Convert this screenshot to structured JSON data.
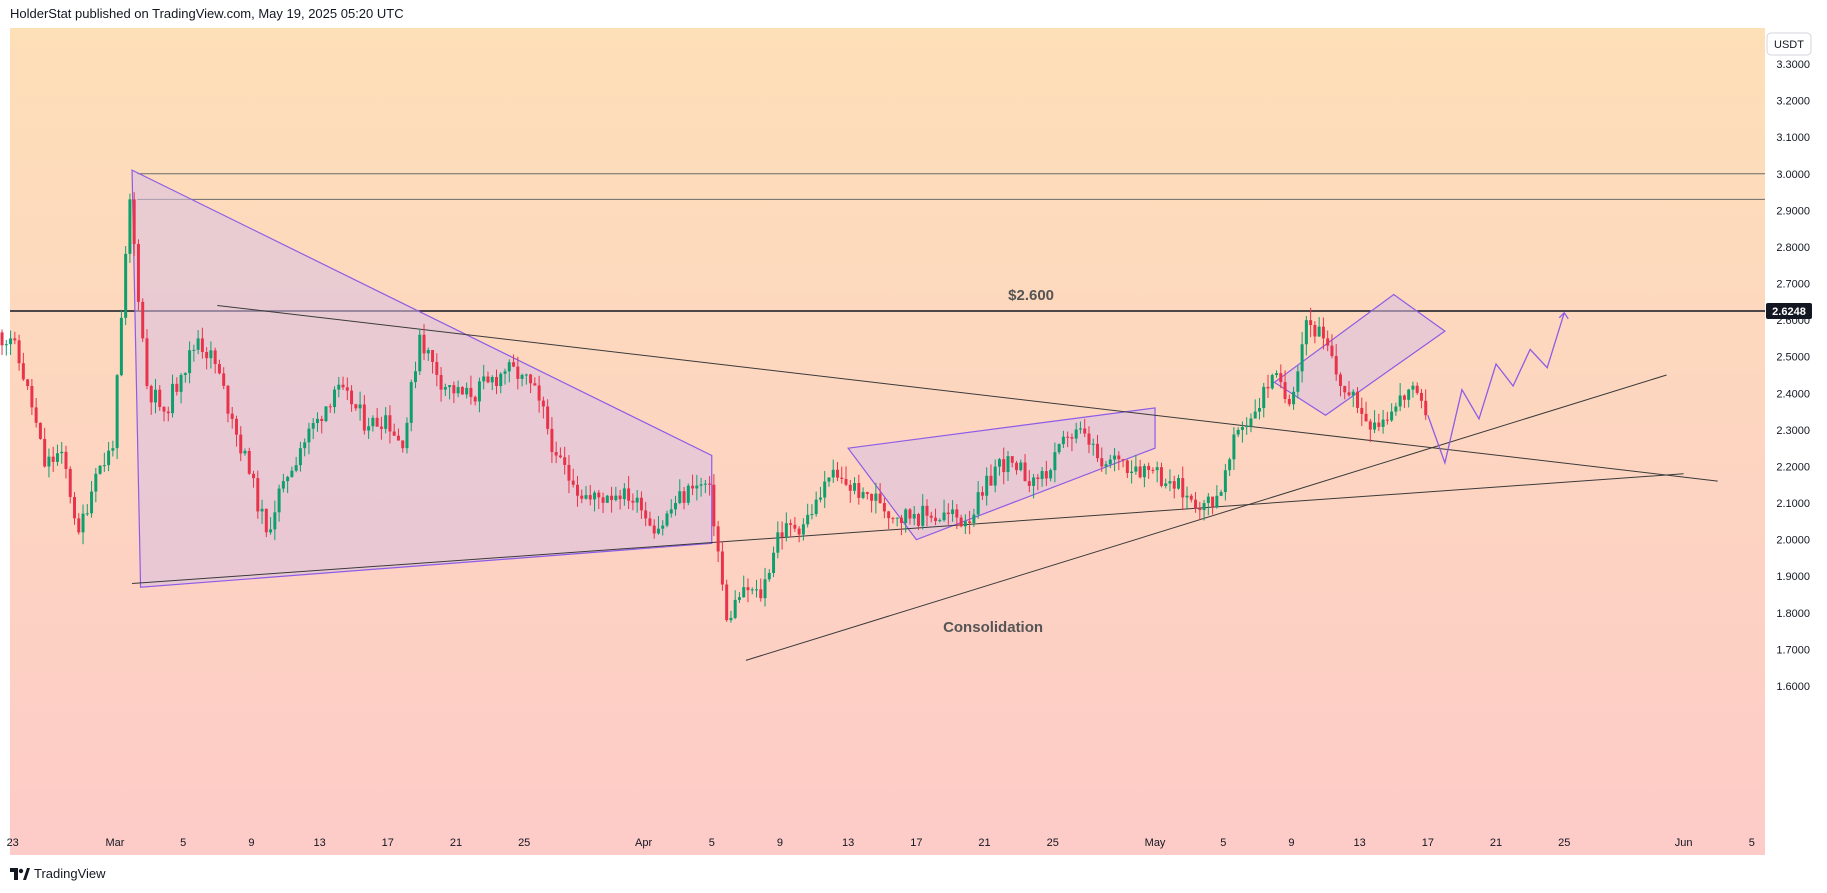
{
  "header": {
    "published": "HolderStat published on TradingView.com, May 19, 2025 05:20 UTC"
  },
  "footer": {
    "brand": "TradingView",
    "brand_icon": "tradingview-logo-icon"
  },
  "colors": {
    "bg_top": "#fddfb8",
    "bg_bottom": "#fdcbc8",
    "candle_up": "#0e9f6e",
    "candle_down": "#e8334a",
    "pattern_line": "#8e5ce6",
    "pattern_fill": "#d8bfe4",
    "trend_line": "#3a3a3a",
    "price_badge": "#131722"
  },
  "chart_data": {
    "type": "candlestick",
    "currency": "USDT",
    "ylim": [
      1.55,
      3.35
    ],
    "y_ticks": [
      "3.3000",
      "3.2000",
      "3.1000",
      "3.0000",
      "2.9000",
      "2.8000",
      "2.7000",
      "2.6000",
      "2.5000",
      "2.4000",
      "2.3000",
      "2.2000",
      "2.1000",
      "2.0000",
      "1.9000",
      "1.8000",
      "1.7000",
      "1.6000"
    ],
    "x_ticks": [
      "23",
      "Mar",
      "5",
      "9",
      "13",
      "17",
      "21",
      "25",
      "Apr",
      "5",
      "9",
      "13",
      "17",
      "21",
      "25",
      "May",
      "5",
      "9",
      "13",
      "17",
      "21",
      "25",
      "Jun",
      "5"
    ],
    "x_tick_days": [
      -6,
      0,
      4,
      8,
      12,
      16,
      20,
      24,
      31,
      35,
      39,
      43,
      47,
      51,
      55,
      61,
      65,
      69,
      73,
      77,
      81,
      85,
      92,
      96
    ],
    "last_price": "2.6248",
    "price_level_label": "$2.600",
    "annotation": "Consolidation",
    "daily_closes": [
      {
        "day": -7,
        "close": 2.56
      },
      {
        "day": -6,
        "close": 2.55
      },
      {
        "day": -5,
        "close": 2.42
      },
      {
        "day": -4,
        "close": 2.2
      },
      {
        "day": -3,
        "close": 2.24
      },
      {
        "day": -2,
        "close": 2.02
      },
      {
        "day": -1,
        "close": 2.18
      },
      {
        "day": 0,
        "close": 2.25
      },
      {
        "day": 1,
        "close": 2.93
      },
      {
        "day": 2,
        "close": 2.42
      },
      {
        "day": 3,
        "close": 2.35
      },
      {
        "day": 4,
        "close": 2.45
      },
      {
        "day": 5,
        "close": 2.55
      },
      {
        "day": 6,
        "close": 2.48
      },
      {
        "day": 7,
        "close": 2.33
      },
      {
        "day": 8,
        "close": 2.18
      },
      {
        "day": 9,
        "close": 2.02
      },
      {
        "day": 10,
        "close": 2.16
      },
      {
        "day": 11,
        "close": 2.25
      },
      {
        "day": 12,
        "close": 2.33
      },
      {
        "day": 13,
        "close": 2.41
      },
      {
        "day": 14,
        "close": 2.37
      },
      {
        "day": 15,
        "close": 2.31
      },
      {
        "day": 16,
        "close": 2.34
      },
      {
        "day": 17,
        "close": 2.25
      },
      {
        "day": 18,
        "close": 2.56
      },
      {
        "day": 19,
        "close": 2.45
      },
      {
        "day": 20,
        "close": 2.4
      },
      {
        "day": 21,
        "close": 2.39
      },
      {
        "day": 22,
        "close": 2.43
      },
      {
        "day": 23,
        "close": 2.46
      },
      {
        "day": 24,
        "close": 2.45
      },
      {
        "day": 25,
        "close": 2.38
      },
      {
        "day": 26,
        "close": 2.23
      },
      {
        "day": 27,
        "close": 2.15
      },
      {
        "day": 28,
        "close": 2.11
      },
      {
        "day": 29,
        "close": 2.12
      },
      {
        "day": 30,
        "close": 2.14
      },
      {
        "day": 31,
        "close": 2.08
      },
      {
        "day": 32,
        "close": 2.03
      },
      {
        "day": 33,
        "close": 2.1
      },
      {
        "day": 34,
        "close": 2.14
      },
      {
        "day": 35,
        "close": 2.15
      },
      {
        "day": 36,
        "close": 1.78
      },
      {
        "day": 37,
        "close": 1.87
      },
      {
        "day": 38,
        "close": 1.84
      },
      {
        "day": 39,
        "close": 2.02
      },
      {
        "day": 40,
        "close": 2.03
      },
      {
        "day": 41,
        "close": 2.07
      },
      {
        "day": 42,
        "close": 2.17
      },
      {
        "day": 43,
        "close": 2.15
      },
      {
        "day": 44,
        "close": 2.13
      },
      {
        "day": 45,
        "close": 2.1
      },
      {
        "day": 46,
        "close": 2.06
      },
      {
        "day": 47,
        "close": 2.07
      },
      {
        "day": 48,
        "close": 2.06
      },
      {
        "day": 49,
        "close": 2.07
      },
      {
        "day": 50,
        "close": 2.05
      },
      {
        "day": 51,
        "close": 2.12
      },
      {
        "day": 52,
        "close": 2.22
      },
      {
        "day": 53,
        "close": 2.19
      },
      {
        "day": 54,
        "close": 2.17
      },
      {
        "day": 55,
        "close": 2.19
      },
      {
        "day": 56,
        "close": 2.28
      },
      {
        "day": 57,
        "close": 2.29
      },
      {
        "day": 58,
        "close": 2.2
      },
      {
        "day": 59,
        "close": 2.22
      },
      {
        "day": 60,
        "close": 2.2
      },
      {
        "day": 61,
        "close": 2.19
      },
      {
        "day": 62,
        "close": 2.16
      },
      {
        "day": 63,
        "close": 2.12
      },
      {
        "day": 64,
        "close": 2.1
      },
      {
        "day": 65,
        "close": 2.13
      },
      {
        "day": 66,
        "close": 2.3
      },
      {
        "day": 67,
        "close": 2.35
      },
      {
        "day": 68,
        "close": 2.45
      },
      {
        "day": 69,
        "close": 2.37
      },
      {
        "day": 70,
        "close": 2.6
      },
      {
        "day": 71,
        "close": 2.55
      },
      {
        "day": 72,
        "close": 2.42
      },
      {
        "day": 73,
        "close": 2.36
      },
      {
        "day": 74,
        "close": 2.32
      },
      {
        "day": 75,
        "close": 2.35
      },
      {
        "day": 76,
        "close": 2.41
      },
      {
        "day": 77,
        "close": 2.34
      }
    ],
    "forecast_path": [
      {
        "day": 77,
        "price": 2.34
      },
      {
        "day": 78,
        "price": 2.21
      },
      {
        "day": 79,
        "price": 2.41
      },
      {
        "day": 80,
        "price": 2.33
      },
      {
        "day": 81,
        "price": 2.48
      },
      {
        "day": 82,
        "price": 2.42
      },
      {
        "day": 83,
        "price": 2.52
      },
      {
        "day": 84,
        "price": 2.47
      },
      {
        "day": 85,
        "price": 2.62
      }
    ],
    "horizontal_levels": [
      3.0,
      2.93
    ],
    "support_resistance_level": 2.6248,
    "trendlines": [
      {
        "from": {
          "day": 6,
          "price": 2.64
        },
        "to": {
          "day": 94,
          "price": 2.16
        }
      },
      {
        "from": {
          "day": 1,
          "price": 1.88
        },
        "to": {
          "day": 92,
          "price": 2.18
        }
      },
      {
        "from": {
          "day": 37,
          "price": 1.67
        },
        "to": {
          "day": 91,
          "price": 2.45
        }
      }
    ],
    "patterns": [
      {
        "name": "descending-triangle",
        "points": [
          {
            "day": 1,
            "price": 3.01
          },
          {
            "day": 35,
            "price": 2.23
          },
          {
            "day": 35,
            "price": 1.99
          },
          {
            "day": 1.5,
            "price": 1.87
          }
        ]
      },
      {
        "name": "rising-channel",
        "points": [
          {
            "day": 43,
            "price": 2.25
          },
          {
            "day": 61,
            "price": 2.36
          },
          {
            "day": 61,
            "price": 2.25
          },
          {
            "day": 47,
            "price": 2.0
          }
        ]
      },
      {
        "name": "rising-wedge",
        "points": [
          {
            "day": 68,
            "price": 2.43
          },
          {
            "day": 75,
            "price": 2.67
          },
          {
            "day": 78,
            "price": 2.57
          },
          {
            "day": 71,
            "price": 2.34
          }
        ]
      }
    ]
  }
}
